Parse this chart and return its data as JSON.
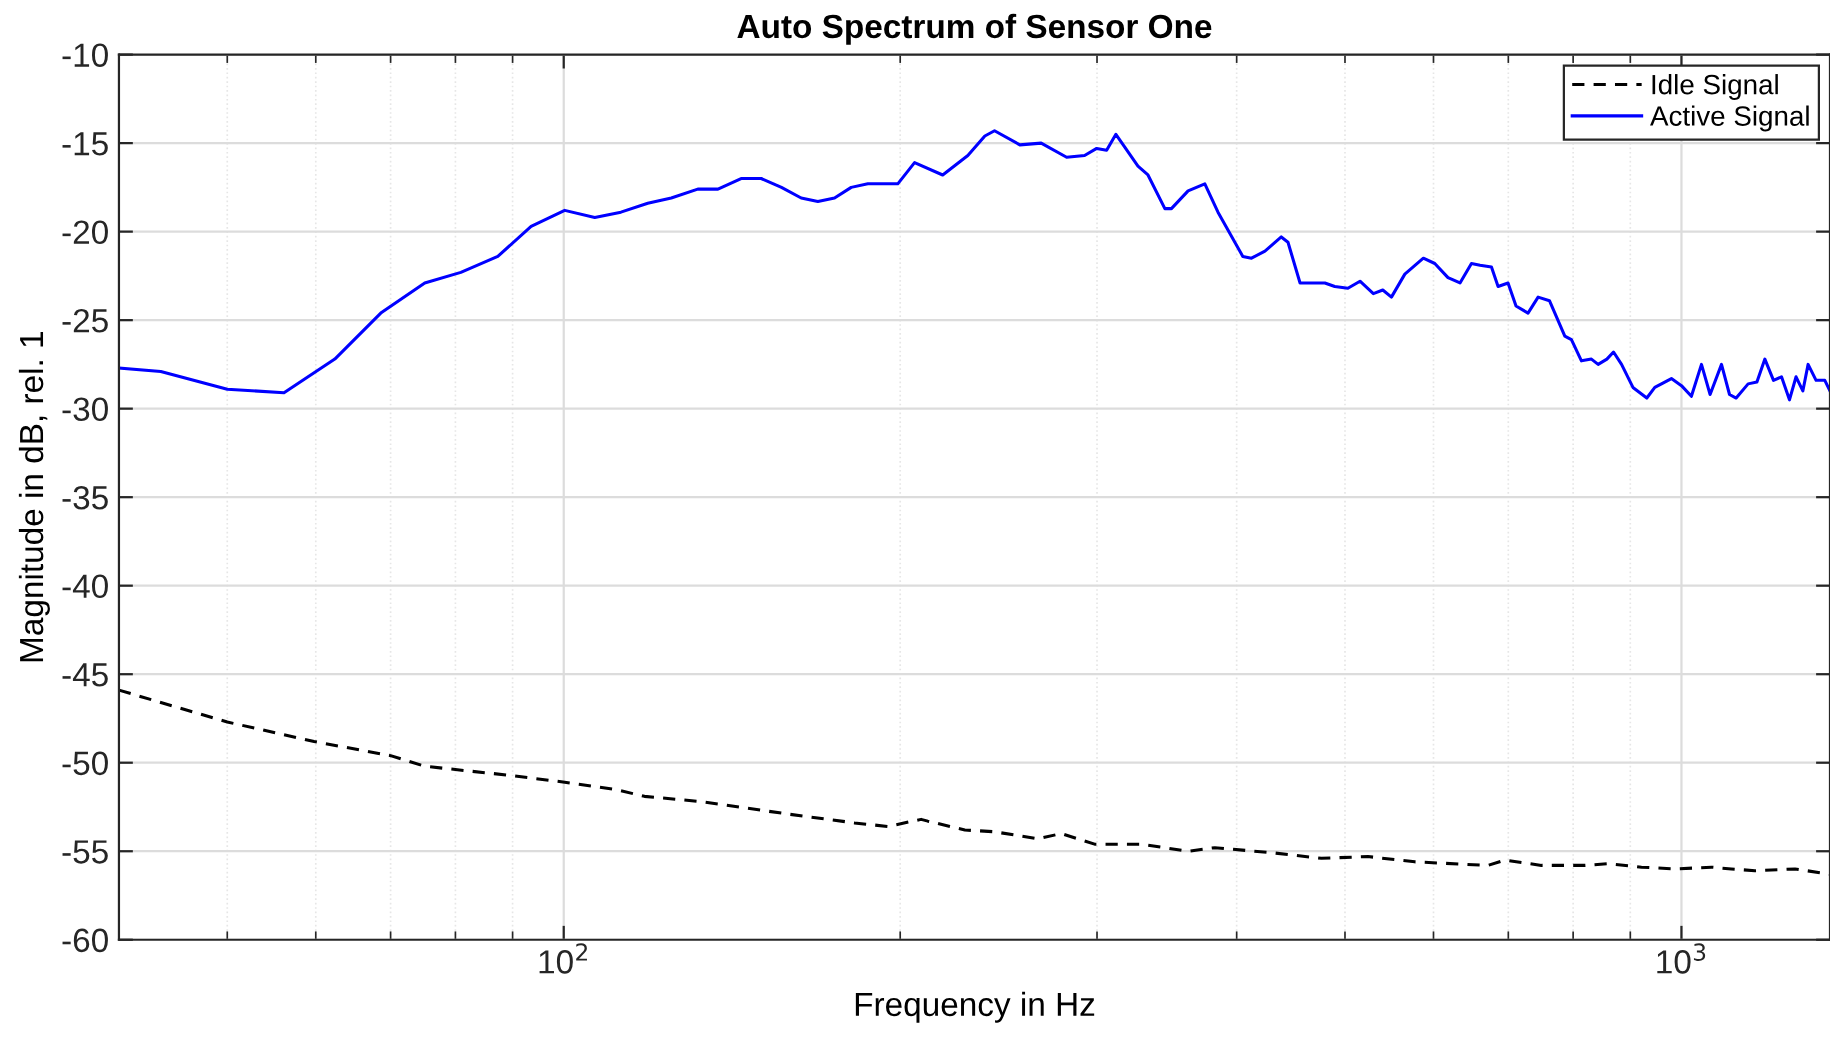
{
  "chart_data": {
    "type": "line",
    "title": "Auto Spectrum of Sensor One",
    "xlabel": "Frequency in Hz",
    "ylabel": "Magnitude in dB, rel. 1",
    "log": "x",
    "grid": true,
    "legend": "top right",
    "xlim": [
      40,
      1358
    ],
    "xticks": [
      {
        "value": 100,
        "label": "10$^{2}$"
      },
      {
        "value": 1000,
        "label": "10$^{3}$"
      }
    ],
    "ylim": [
      -60,
      -10
    ],
    "yticks": [
      -60,
      -55,
      -50,
      -45,
      -40,
      -35,
      -30,
      -25,
      -20,
      -15,
      -10
    ],
    "series": [
      {
        "name": "Idle Signal",
        "color": "#000000",
        "line_style": "dashed",
        "x": [
          40,
          50,
          59.8,
          70,
          75.1,
          89.1,
          100.2,
          111,
          118.1,
          132.7,
          158.7,
          182,
          195,
          208.8,
          211.7,
          228.5,
          242.9,
          265.6,
          278.7,
          298.5,
          328.8,
          361.9,
          382.4,
          432.5,
          476.3,
          524.2,
          577.4,
          671.3,
          695,
          749.4,
          819.5,
          859.8,
          920.9,
          986.5,
          1063.6,
          1108.4,
          1163.3,
          1263.6,
          1358
        ],
        "values": [
          -45.9,
          -47.7,
          -48.8,
          -49.6,
          -50.2,
          -50.7,
          -51.1,
          -51.5,
          -51.9,
          -52.2,
          -52.9,
          -53.4,
          -53.6,
          -53.2,
          -53.3,
          -53.8,
          -53.9,
          -54.3,
          -54,
          -54.6,
          -54.6,
          -55,
          -54.8,
          -55.1,
          -55.4,
          -55.3,
          -55.6,
          -55.8,
          -55.5,
          -55.8,
          -55.8,
          -55.7,
          -55.9,
          -56,
          -55.9,
          -56,
          -56.1,
          -56,
          -56.3
        ]
      },
      {
        "name": "Active Signal",
        "color": "#0000ff",
        "line_style": "solid",
        "x": [
          40,
          43.6,
          50,
          56.2,
          62.4,
          68.6,
          75.1,
          80.9,
          87.3,
          93.5,
          100.2,
          106.6,
          112.5,
          118.9,
          124.8,
          131.8,
          137.4,
          144.1,
          150.2,
          156.6,
          163.1,
          168.8,
          174.7,
          180.8,
          187.1,
          199,
          206,
          218.3,
          229.9,
          238.1,
          242.9,
          255.9,
          267.4,
          281.8,
          292.4,
          299.8,
          306,
          311.9,
          326.4,
          333.2,
          345,
          349.7,
          361.9,
          374.6,
          384.9,
          405.1,
          412.4,
          424,
          438.5,
          444.6,
          455.8,
          479.7,
          489.6,
          503,
          515.7,
          530.1,
          540.5,
          550.2,
          565.6,
          587.6,
          601.6,
          618.2,
          633.7,
          648.8,
          660.4,
          676.1,
          685.4,
          699.6,
          711.2,
          729,
          744.3,
          761.9,
          786.4,
          797.2,
          813.8,
          830.7,
          842.3,
          857.6,
          869.4,
          883.9,
          904.9,
          931.1,
          946.6,
          979.5,
          1000,
          1020.7,
          1042.1,
          1060.8,
          1086,
          1104.1,
          1119.3,
          1147.2,
          1168.2,
          1187.5,
          1208.8,
          1228.9,
          1249.2,
          1266.3,
          1284.1,
          1298.1,
          1319.6,
          1343.6,
          1358
        ],
        "values": [
          -27.7,
          -27.9,
          -28.9,
          -29.1,
          -27.2,
          -24.6,
          -22.9,
          -22.3,
          -21.4,
          -19.7,
          -18.8,
          -19.2,
          -18.9,
          -18.4,
          -18.1,
          -17.6,
          -17.6,
          -17,
          -17,
          -17.5,
          -18.1,
          -18.3,
          -18.1,
          -17.5,
          -17.3,
          -17.3,
          -16.1,
          -16.8,
          -15.7,
          -14.6,
          -14.3,
          -15.1,
          -15,
          -15.8,
          -15.7,
          -15.3,
          -15.4,
          -14.5,
          -16.3,
          -16.8,
          -18.7,
          -18.7,
          -17.7,
          -17.3,
          -18.9,
          -21.4,
          -21.5,
          -21.1,
          -20.3,
          -20.6,
          -22.9,
          -22.9,
          -23.1,
          -23.2,
          -22.8,
          -23.5,
          -23.3,
          -23.7,
          -22.4,
          -21.5,
          -21.8,
          -22.6,
          -22.9,
          -21.8,
          -21.9,
          -22,
          -23.1,
          -22.9,
          -24.2,
          -24.6,
          -23.7,
          -23.9,
          -25.9,
          -26.1,
          -27.3,
          -27.2,
          -27.5,
          -27.2,
          -26.8,
          -27.5,
          -28.8,
          -29.4,
          -28.8,
          -28.3,
          -28.7,
          -29.3,
          -27.5,
          -29.2,
          -27.5,
          -29.2,
          -29.4,
          -28.6,
          -28.5,
          -27.2,
          -28.4,
          -28.2,
          -29.5,
          -28.2,
          -29,
          -27.5,
          -28.4,
          -28.4,
          -29
        ]
      }
    ]
  }
}
